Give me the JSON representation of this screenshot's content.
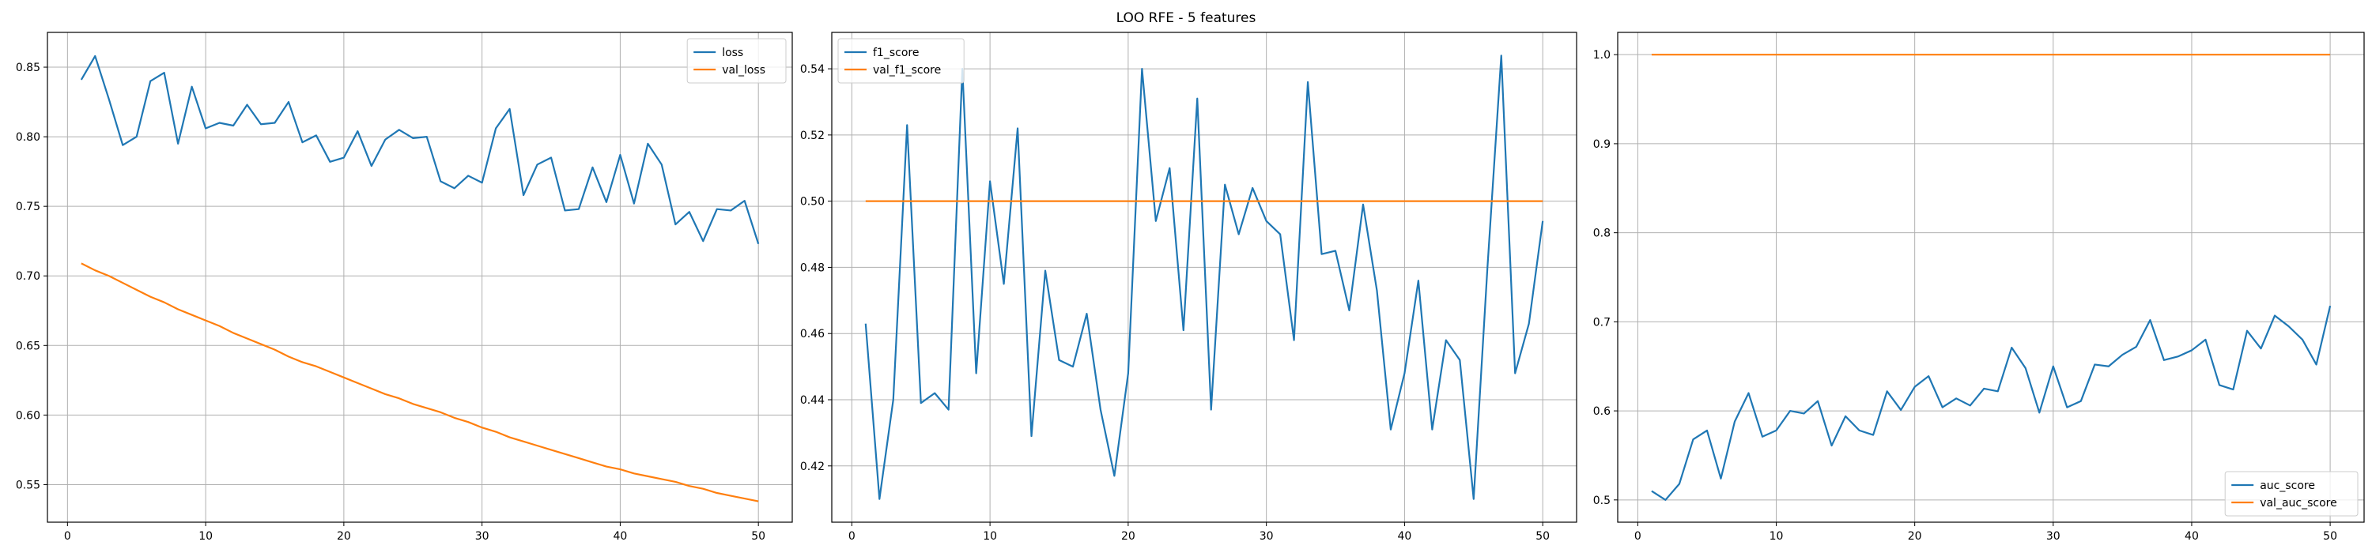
{
  "figure": {
    "title": "LOO RFE - 5 features"
  },
  "colors": {
    "series1": "#1f77b4",
    "series2": "#ff7f0e",
    "grid": "#b0b0b0",
    "axes": "#000000"
  },
  "chart_data": [
    {
      "type": "line",
      "title": "",
      "xlabel": "",
      "ylabel": "",
      "xlim": [
        -1.45,
        52.45
      ],
      "ylim": [
        0.523,
        0.875
      ],
      "xticks": [
        0,
        10,
        20,
        30,
        40,
        50
      ],
      "yticks": [
        0.55,
        0.6,
        0.65,
        0.7,
        0.75,
        0.8,
        0.85
      ],
      "ytick_decimals": 2,
      "grid": true,
      "legend_position": "top-right",
      "x": [
        1,
        2,
        3,
        4,
        5,
        6,
        7,
        8,
        9,
        10,
        11,
        12,
        13,
        14,
        15,
        16,
        17,
        18,
        19,
        20,
        21,
        22,
        23,
        24,
        25,
        26,
        27,
        28,
        29,
        30,
        31,
        32,
        33,
        34,
        35,
        36,
        37,
        38,
        39,
        40,
        41,
        42,
        43,
        44,
        45,
        46,
        47,
        48,
        49,
        50
      ],
      "series": [
        {
          "name": "loss",
          "color": "#1f77b4",
          "values": [
            0.841,
            0.858,
            0.827,
            0.794,
            0.8,
            0.84,
            0.846,
            0.795,
            0.836,
            0.806,
            0.81,
            0.808,
            0.823,
            0.809,
            0.81,
            0.825,
            0.796,
            0.801,
            0.782,
            0.785,
            0.804,
            0.779,
            0.798,
            0.805,
            0.799,
            0.8,
            0.768,
            0.763,
            0.772,
            0.767,
            0.806,
            0.82,
            0.758,
            0.78,
            0.785,
            0.747,
            0.748,
            0.778,
            0.753,
            0.787,
            0.752,
            0.795,
            0.78,
            0.737,
            0.746,
            0.725,
            0.748,
            0.747,
            0.754,
            0.723
          ]
        },
        {
          "name": "val_loss",
          "color": "#ff7f0e",
          "values": [
            0.709,
            0.704,
            0.7,
            0.695,
            0.69,
            0.685,
            0.681,
            0.676,
            0.672,
            0.668,
            0.664,
            0.659,
            0.655,
            0.651,
            0.647,
            0.642,
            0.638,
            0.635,
            0.631,
            0.627,
            0.623,
            0.619,
            0.615,
            0.612,
            0.608,
            0.605,
            0.602,
            0.598,
            0.595,
            0.591,
            0.588,
            0.584,
            0.581,
            0.578,
            0.575,
            0.572,
            0.569,
            0.566,
            0.563,
            0.561,
            0.558,
            0.556,
            0.554,
            0.552,
            0.549,
            0.547,
            0.544,
            0.542,
            0.54,
            0.538
          ]
        }
      ]
    },
    {
      "type": "line",
      "title": "",
      "xlabel": "",
      "ylabel": "",
      "xlim": [
        -1.45,
        52.45
      ],
      "ylim": [
        0.403,
        0.551
      ],
      "xticks": [
        0,
        10,
        20,
        30,
        40,
        50
      ],
      "yticks": [
        0.42,
        0.44,
        0.46,
        0.48,
        0.5,
        0.52,
        0.54
      ],
      "ytick_decimals": 2,
      "grid": true,
      "legend_position": "top-left",
      "x": [
        1,
        2,
        3,
        4,
        5,
        6,
        7,
        8,
        9,
        10,
        11,
        12,
        13,
        14,
        15,
        16,
        17,
        18,
        19,
        20,
        21,
        22,
        23,
        24,
        25,
        26,
        27,
        28,
        29,
        30,
        31,
        32,
        33,
        34,
        35,
        36,
        37,
        38,
        39,
        40,
        41,
        42,
        43,
        44,
        45,
        46,
        47,
        48,
        49,
        50
      ],
      "series": [
        {
          "name": "f1_score",
          "color": "#1f77b4",
          "values": [
            0.463,
            0.41,
            0.44,
            0.523,
            0.439,
            0.442,
            0.437,
            0.54,
            0.448,
            0.506,
            0.475,
            0.522,
            0.429,
            0.479,
            0.452,
            0.45,
            0.466,
            0.437,
            0.417,
            0.448,
            0.54,
            0.494,
            0.51,
            0.461,
            0.531,
            0.437,
            0.505,
            0.49,
            0.504,
            0.494,
            0.49,
            0.458,
            0.536,
            0.484,
            0.485,
            0.467,
            0.499,
            0.473,
            0.431,
            0.448,
            0.476,
            0.431,
            0.458,
            0.452,
            0.41,
            0.48,
            0.544,
            0.448,
            0.463,
            0.494
          ]
        },
        {
          "name": "val_f1_score",
          "color": "#ff7f0e",
          "values": [
            0.5,
            0.5,
            0.5,
            0.5,
            0.5,
            0.5,
            0.5,
            0.5,
            0.5,
            0.5,
            0.5,
            0.5,
            0.5,
            0.5,
            0.5,
            0.5,
            0.5,
            0.5,
            0.5,
            0.5,
            0.5,
            0.5,
            0.5,
            0.5,
            0.5,
            0.5,
            0.5,
            0.5,
            0.5,
            0.5,
            0.5,
            0.5,
            0.5,
            0.5,
            0.5,
            0.5,
            0.5,
            0.5,
            0.5,
            0.5,
            0.5,
            0.5,
            0.5,
            0.5,
            0.5,
            0.5,
            0.5,
            0.5,
            0.5,
            0.5
          ]
        }
      ]
    },
    {
      "type": "line",
      "title": "",
      "xlabel": "",
      "ylabel": "",
      "xlim": [
        -1.45,
        52.45
      ],
      "ylim": [
        0.475,
        1.025
      ],
      "xticks": [
        0,
        10,
        20,
        30,
        40,
        50
      ],
      "yticks": [
        0.5,
        0.6,
        0.7,
        0.8,
        0.9,
        1.0
      ],
      "ytick_decimals": 1,
      "grid": true,
      "legend_position": "bottom-right",
      "x": [
        1,
        2,
        3,
        4,
        5,
        6,
        7,
        8,
        9,
        10,
        11,
        12,
        13,
        14,
        15,
        16,
        17,
        18,
        19,
        20,
        21,
        22,
        23,
        24,
        25,
        26,
        27,
        28,
        29,
        30,
        31,
        32,
        33,
        34,
        35,
        36,
        37,
        38,
        39,
        40,
        41,
        42,
        43,
        44,
        45,
        46,
        47,
        48,
        49,
        50
      ],
      "series": [
        {
          "name": "auc_score",
          "color": "#1f77b4",
          "values": [
            0.51,
            0.5,
            0.518,
            0.568,
            0.578,
            0.524,
            0.588,
            0.62,
            0.571,
            0.578,
            0.6,
            0.597,
            0.611,
            0.561,
            0.594,
            0.578,
            0.573,
            0.622,
            0.601,
            0.627,
            0.639,
            0.604,
            0.614,
            0.606,
            0.625,
            0.622,
            0.671,
            0.648,
            0.598,
            0.65,
            0.604,
            0.611,
            0.652,
            0.65,
            0.663,
            0.672,
            0.702,
            0.657,
            0.661,
            0.668,
            0.68,
            0.629,
            0.624,
            0.69,
            0.67,
            0.707,
            0.695,
            0.68,
            0.652,
            0.718
          ]
        },
        {
          "name": "val_auc_score",
          "color": "#ff7f0e",
          "values": [
            1.0,
            1.0,
            1.0,
            1.0,
            1.0,
            1.0,
            1.0,
            1.0,
            1.0,
            1.0,
            1.0,
            1.0,
            1.0,
            1.0,
            1.0,
            1.0,
            1.0,
            1.0,
            1.0,
            1.0,
            1.0,
            1.0,
            1.0,
            1.0,
            1.0,
            1.0,
            1.0,
            1.0,
            1.0,
            1.0,
            1.0,
            1.0,
            1.0,
            1.0,
            1.0,
            1.0,
            1.0,
            1.0,
            1.0,
            1.0,
            1.0,
            1.0,
            1.0,
            1.0,
            1.0,
            1.0,
            1.0,
            1.0,
            1.0,
            1.0
          ]
        }
      ]
    }
  ]
}
